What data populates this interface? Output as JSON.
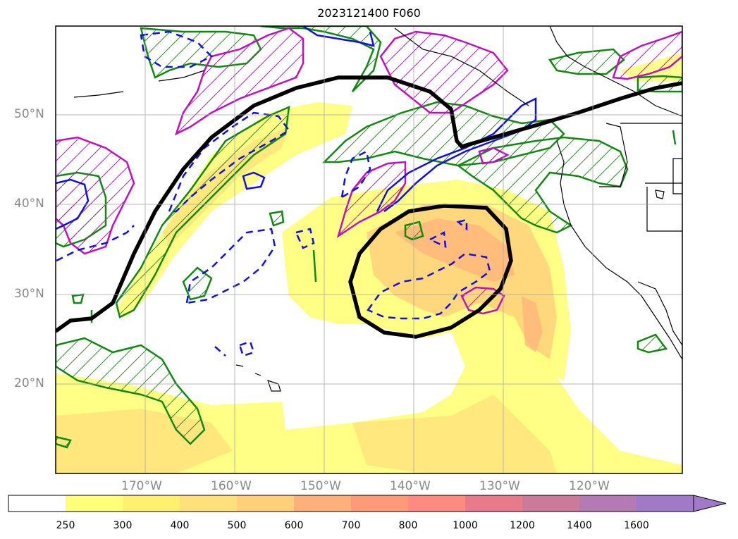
{
  "title": "2023121400 F060",
  "map": {
    "lat_labels": [
      "50°N",
      "40°N",
      "30°N",
      "20°N"
    ],
    "lon_labels": [
      "170°W",
      "160°W",
      "150°W",
      "140°W",
      "130°W",
      "120°W"
    ]
  },
  "colorbar": {
    "ticks": [
      "250",
      "300",
      "400",
      "500",
      "600",
      "700",
      "800",
      "1000",
      "1200",
      "1400",
      "1600"
    ],
    "colors": [
      "#ffffff",
      "#ffff7a",
      "#fff070",
      "#ffe07a",
      "#ffd07a",
      "#ffb07a",
      "#ff9a78",
      "#ff8a80",
      "#e87a8a",
      "#cc7a9a",
      "#b47ab4",
      "#a07ac8"
    ],
    "extend": "max"
  }
}
